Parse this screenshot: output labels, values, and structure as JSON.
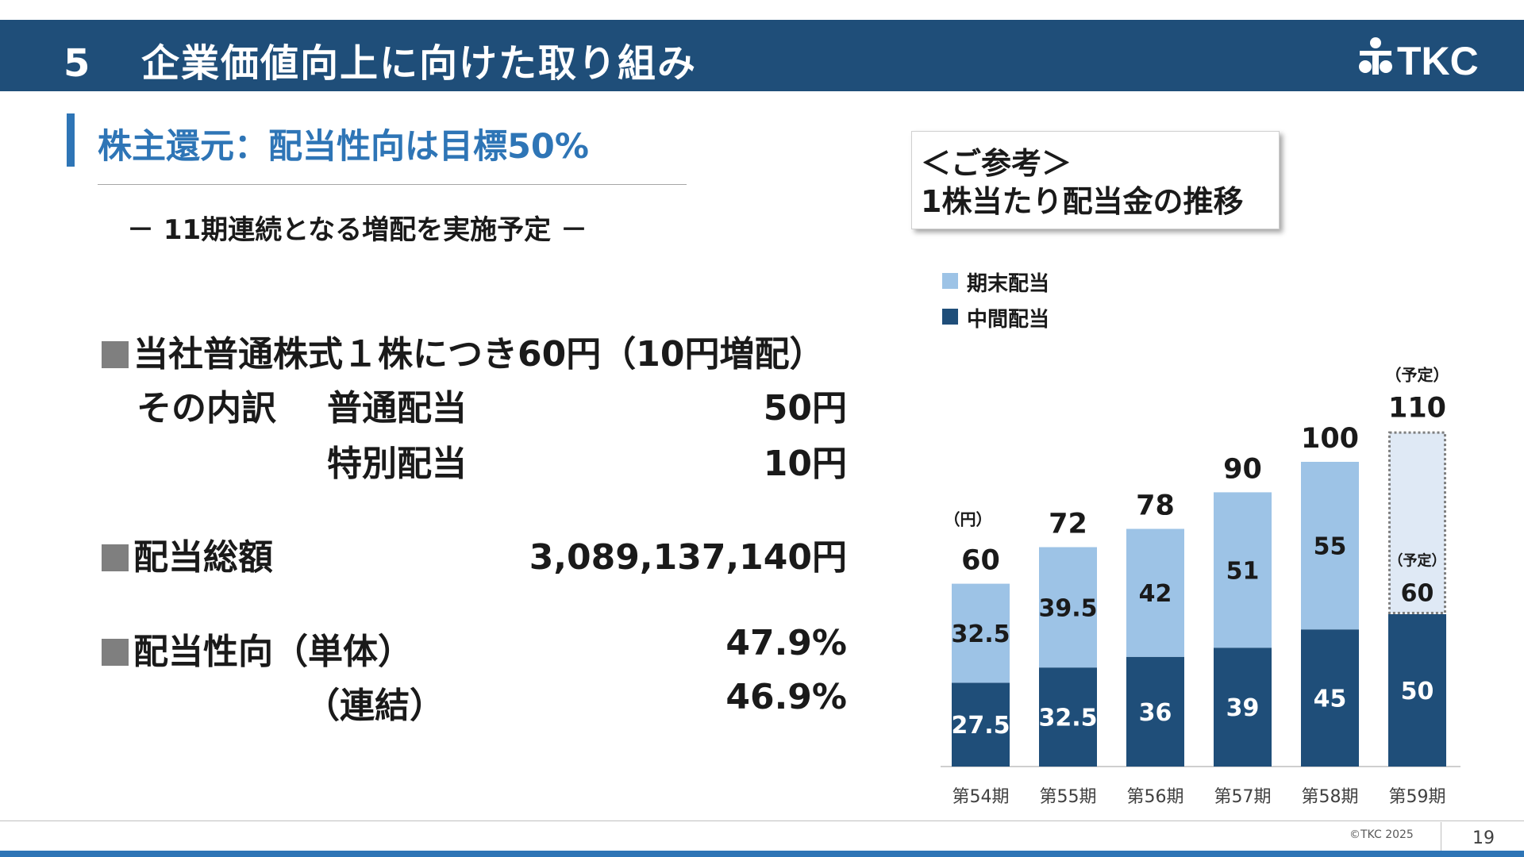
{
  "header": {
    "section_number": "5",
    "section_title": "企業価値向上に向けた取り組み",
    "logo_text": "TKC"
  },
  "subtitle": "株主還元：配当性向は目標50%",
  "lead": "－ 11期連続となる増配を実施予定 －",
  "dividend": {
    "line1": "当社普通株式１株につき60円（10円増配）",
    "breakdown_label": "その内訳",
    "ordinary_label": "普通配当",
    "ordinary_value": "50円",
    "special_label": "特別配当",
    "special_value": "10円"
  },
  "total": {
    "label": "配当総額",
    "value": "3,089,137,140円"
  },
  "payout": {
    "label": "配当性向（単体）",
    "nonconsol_value": "47.9%",
    "consol_label": "（連結）",
    "consol_value": "46.9%"
  },
  "reference": {
    "line1": "＜ご参考＞",
    "line2": "1株当たり配当金の推移"
  },
  "colors": {
    "interim": "#1f4e79",
    "year_end": "#9dc3e6",
    "forecast_fill": "#dfe9f5",
    "forecast_border": "#7f7f7f"
  },
  "chart_data": {
    "type": "bar",
    "stacked": true,
    "unit_label": "（円）",
    "categories": [
      "第54期",
      "第55期",
      "第56期",
      "第57期",
      "第58期",
      "第59期"
    ],
    "series": [
      {
        "name": "中間配当",
        "values": [
          27.5,
          32.5,
          36,
          39,
          45,
          50
        ],
        "color": "#1f4e79"
      },
      {
        "name": "期末配当",
        "values": [
          32.5,
          39.5,
          42,
          51,
          55,
          60
        ],
        "color": "#9dc3e6"
      }
    ],
    "totals": [
      "60",
      "72",
      "78",
      "90",
      "100",
      "110"
    ],
    "forecast_note": "（予定）",
    "forecast_category_index": 5,
    "ylim": [
      0,
      125
    ],
    "legend": [
      "期末配当",
      "中間配当"
    ],
    "legend_position": "top-left"
  },
  "footer": {
    "copyright": "©TKC 2025",
    "page": "19"
  }
}
